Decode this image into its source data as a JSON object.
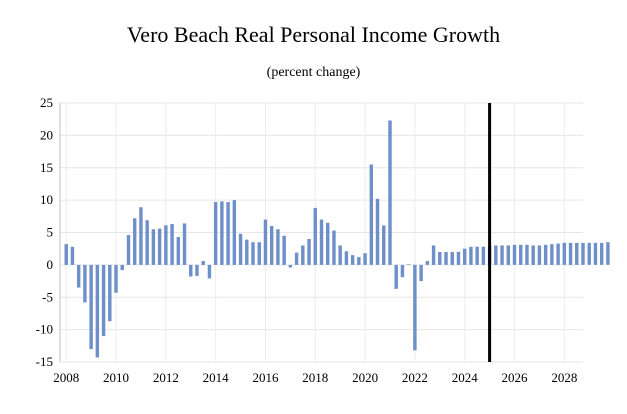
{
  "chart_data": {
    "type": "bar",
    "title": "Vero Beach Real Personal Income Growth",
    "subtitle": "(percent change)",
    "xlabel": "",
    "ylabel": "",
    "ylim": [
      -15,
      25
    ],
    "yticks": [
      -15,
      -10,
      -5,
      0,
      5,
      10,
      15,
      20,
      25
    ],
    "xlim": [
      2007.75,
      2028.75
    ],
    "xticks": [
      2008,
      2010,
      2012,
      2014,
      2016,
      2018,
      2020,
      2022,
      2024,
      2026,
      2028
    ],
    "grid": true,
    "bar_color": "#6f8fc9",
    "marker_line": {
      "x": 2025.0,
      "color": "#000000"
    },
    "series": [
      {
        "x_start": 2008.0,
        "x_step": 0.25,
        "values": [
          3.2,
          2.8,
          -3.5,
          -5.8,
          -13.0,
          -14.3,
          -11.0,
          -8.7,
          -4.3,
          -0.8,
          4.6,
          7.2,
          8.9,
          6.9,
          5.5,
          5.6,
          6.1,
          6.3,
          4.3,
          6.4,
          -1.8,
          -1.7,
          0.6,
          -2.1,
          9.7,
          9.8,
          9.7,
          10.0,
          4.8,
          3.9,
          3.5,
          3.5,
          7.0,
          6.0,
          5.5,
          4.5,
          -0.4,
          1.9,
          3.0,
          4.0,
          8.8,
          7.0,
          6.5,
          5.3,
          3.0,
          2.1,
          1.5,
          1.2,
          1.8,
          15.5,
          10.2,
          6.1,
          22.3,
          -3.7,
          -1.9,
          0.1,
          -13.2,
          -2.5,
          0.6,
          3.0,
          2.0,
          2.0,
          2.0,
          2.0,
          2.5,
          2.8,
          2.8,
          2.8,
          2.9,
          3.0,
          3.0,
          3.0,
          3.1,
          3.1,
          3.1,
          3.0,
          3.0,
          3.1,
          3.2,
          3.3,
          3.4,
          3.4,
          3.4,
          3.4,
          3.4,
          3.4,
          3.4,
          3.5
        ]
      }
    ]
  }
}
